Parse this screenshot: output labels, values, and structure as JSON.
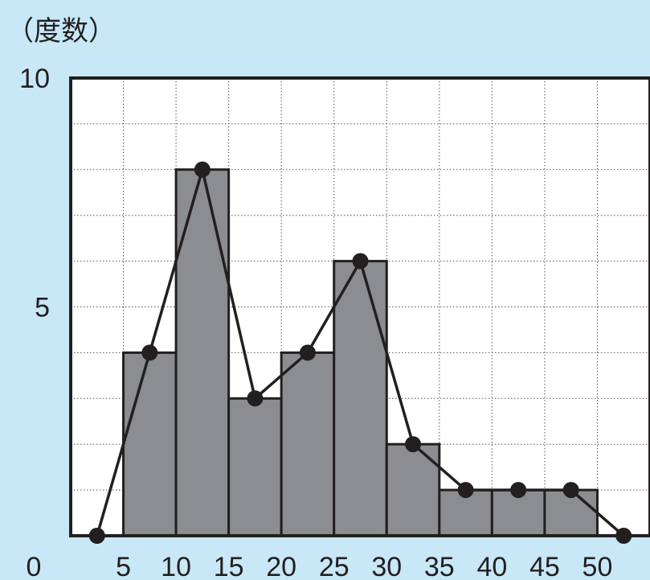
{
  "chart_data": {
    "type": "histogram",
    "ylabel": "（度数）",
    "x_ticks": [
      "0",
      "5",
      "10",
      "15",
      "20",
      "25",
      "30",
      "35",
      "40",
      "45",
      "50"
    ],
    "y_ticks": [
      "0",
      "5",
      "10"
    ],
    "xlim": [
      0,
      55
    ],
    "ylim": [
      0,
      10
    ],
    "grid": true,
    "bins": [
      {
        "from": 5,
        "to": 10,
        "value": 4
      },
      {
        "from": 10,
        "to": 15,
        "value": 8
      },
      {
        "from": 15,
        "to": 20,
        "value": 3
      },
      {
        "from": 20,
        "to": 25,
        "value": 4
      },
      {
        "from": 25,
        "to": 30,
        "value": 6
      },
      {
        "from": 30,
        "to": 35,
        "value": 2
      },
      {
        "from": 35,
        "to": 40,
        "value": 1
      },
      {
        "from": 40,
        "to": 45,
        "value": 1
      },
      {
        "from": 45,
        "to": 50,
        "value": 1
      }
    ],
    "polygon": {
      "x": [
        2.5,
        7.5,
        12.5,
        17.5,
        22.5,
        27.5,
        32.5,
        37.5,
        42.5,
        47.5,
        52.5
      ],
      "y": [
        0,
        4,
        8,
        3,
        4,
        6,
        2,
        1,
        1,
        1,
        0
      ]
    },
    "colors": {
      "background": "#c8e8f8",
      "plot_area": "#ffffff",
      "bar_fill": "#8c8d90",
      "stroke": "#231f20",
      "grid": "#555555"
    }
  }
}
